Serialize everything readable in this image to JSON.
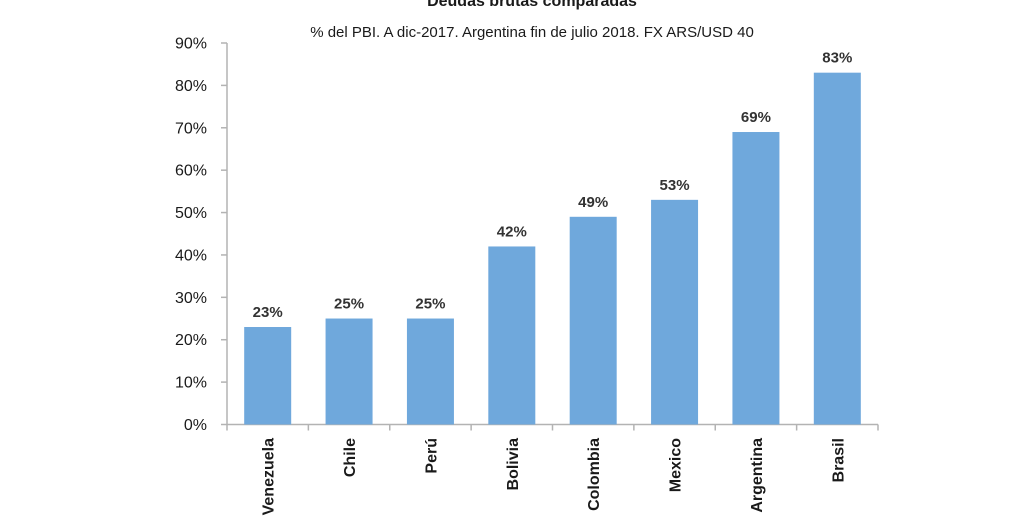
{
  "chart_data": {
    "type": "bar",
    "title": "Deudas brutas comparadas",
    "subtitle": "% del PBI. A dic-2017. Argentina fin de julio 2018. FX ARS/USD 40",
    "categories": [
      "Venezuela",
      "Chile",
      "Perú",
      "Bolivia",
      "Colombia",
      "Mexico",
      "Argentina",
      "Brasil"
    ],
    "values": [
      23,
      25,
      25,
      42,
      49,
      53,
      69,
      83
    ],
    "data_labels": [
      "23%",
      "25%",
      "25%",
      "42%",
      "49%",
      "53%",
      "69%",
      "83%"
    ],
    "y_ticks": [
      "0%",
      "10%",
      "20%",
      "30%",
      "40%",
      "50%",
      "60%",
      "70%",
      "80%",
      "90%"
    ],
    "ylim": [
      0,
      90
    ],
    "grid": false,
    "legend": "none",
    "bar_color": "#6fa8dc",
    "axis_color": "#b3b3b3"
  }
}
